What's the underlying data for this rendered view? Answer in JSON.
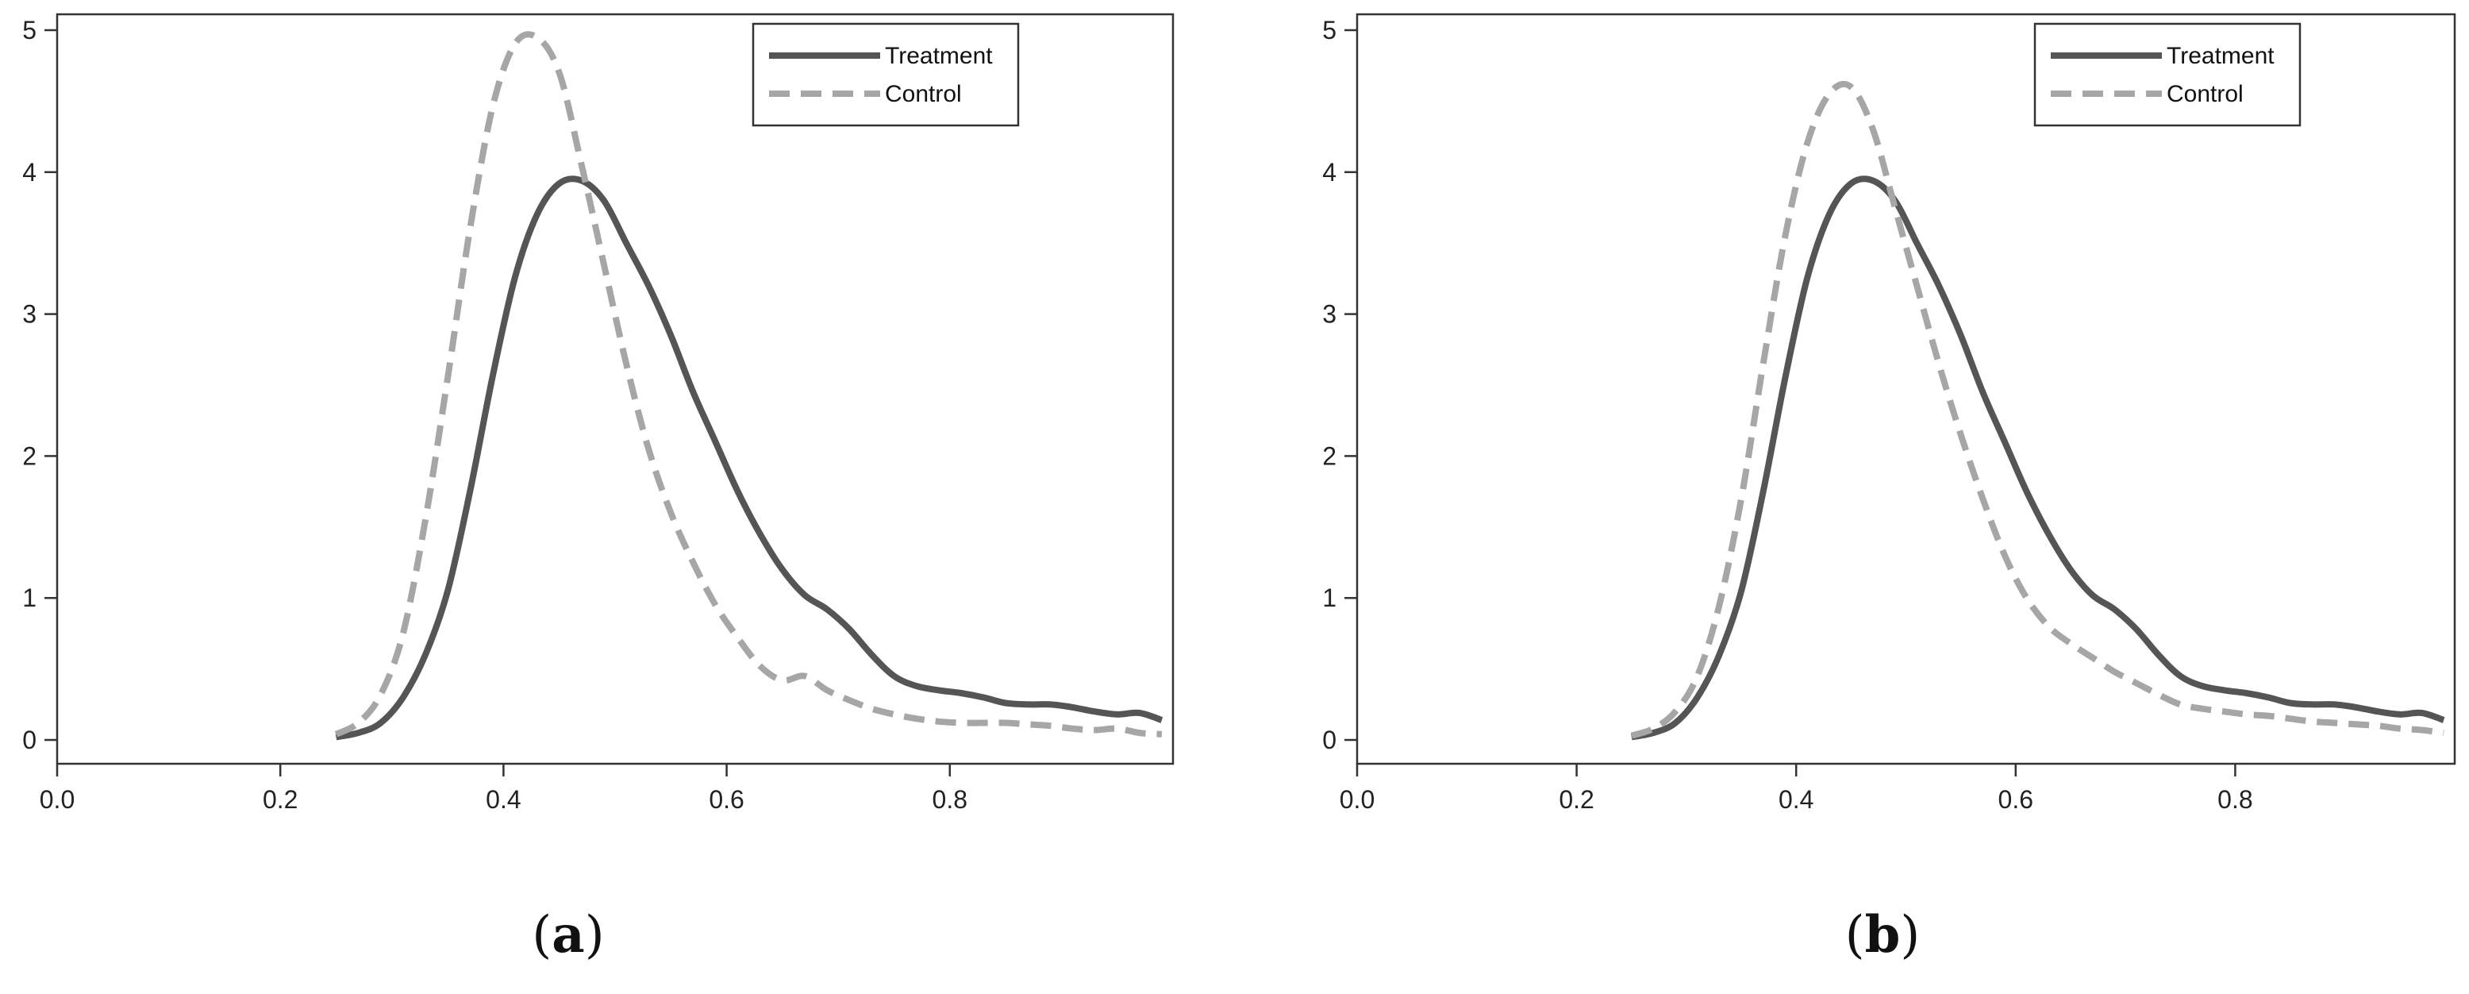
{
  "chart_data": [
    {
      "type": "line",
      "panel_label": "a",
      "xlim": [
        0.0,
        1.0
      ],
      "ylim": [
        0,
        5
      ],
      "xticks": [
        "0.0",
        "0.2",
        "0.4",
        "0.6",
        "0.8"
      ],
      "yticks": [
        "0",
        "1",
        "2",
        "3",
        "4",
        "5"
      ],
      "legend_position": "top-right",
      "series": [
        {
          "name": "Treatment",
          "style": "solid",
          "color": "#555555",
          "x": [
            0.25,
            0.27,
            0.29,
            0.31,
            0.33,
            0.35,
            0.37,
            0.39,
            0.41,
            0.43,
            0.45,
            0.47,
            0.49,
            0.51,
            0.53,
            0.55,
            0.57,
            0.59,
            0.61,
            0.63,
            0.65,
            0.67,
            0.69,
            0.71,
            0.73,
            0.75,
            0.77,
            0.79,
            0.81,
            0.83,
            0.85,
            0.87,
            0.89,
            0.91,
            0.93,
            0.95,
            0.97,
            0.99
          ],
          "y": [
            0.02,
            0.05,
            0.12,
            0.3,
            0.6,
            1.05,
            1.75,
            2.55,
            3.25,
            3.7,
            3.92,
            3.94,
            3.8,
            3.5,
            3.2,
            2.85,
            2.45,
            2.1,
            1.75,
            1.45,
            1.2,
            1.02,
            0.92,
            0.78,
            0.6,
            0.45,
            0.38,
            0.35,
            0.33,
            0.3,
            0.26,
            0.25,
            0.25,
            0.23,
            0.2,
            0.18,
            0.19,
            0.14
          ]
        },
        {
          "name": "Control",
          "style": "dashed",
          "color": "#a6a6a6",
          "x": [
            0.25,
            0.27,
            0.29,
            0.31,
            0.33,
            0.35,
            0.37,
            0.39,
            0.41,
            0.43,
            0.45,
            0.47,
            0.49,
            0.51,
            0.53,
            0.55,
            0.57,
            0.59,
            0.61,
            0.63,
            0.65,
            0.67,
            0.69,
            0.71,
            0.73,
            0.75,
            0.77,
            0.79,
            0.81,
            0.83,
            0.85,
            0.87,
            0.89,
            0.91,
            0.93,
            0.95,
            0.97,
            0.99
          ],
          "y": [
            0.04,
            0.12,
            0.32,
            0.75,
            1.55,
            2.55,
            3.6,
            4.45,
            4.9,
            4.95,
            4.7,
            4.05,
            3.35,
            2.65,
            2.05,
            1.6,
            1.25,
            0.95,
            0.72,
            0.52,
            0.42,
            0.45,
            0.35,
            0.28,
            0.22,
            0.18,
            0.15,
            0.13,
            0.12,
            0.12,
            0.12,
            0.11,
            0.1,
            0.08,
            0.07,
            0.08,
            0.05,
            0.04
          ]
        }
      ]
    },
    {
      "type": "line",
      "panel_label": "b",
      "xlim": [
        0.0,
        1.0
      ],
      "ylim": [
        0,
        5
      ],
      "xticks": [
        "0.0",
        "0.2",
        "0.4",
        "0.6",
        "0.8"
      ],
      "yticks": [
        "0",
        "1",
        "2",
        "3",
        "4",
        "5"
      ],
      "legend_position": "top-right",
      "series": [
        {
          "name": "Treatment",
          "style": "solid",
          "color": "#555555",
          "x": [
            0.25,
            0.27,
            0.29,
            0.31,
            0.33,
            0.35,
            0.37,
            0.39,
            0.41,
            0.43,
            0.45,
            0.47,
            0.49,
            0.51,
            0.53,
            0.55,
            0.57,
            0.59,
            0.61,
            0.63,
            0.65,
            0.67,
            0.69,
            0.71,
            0.73,
            0.75,
            0.77,
            0.79,
            0.81,
            0.83,
            0.85,
            0.87,
            0.89,
            0.91,
            0.93,
            0.95,
            0.97,
            0.99
          ],
          "y": [
            0.02,
            0.05,
            0.12,
            0.3,
            0.6,
            1.05,
            1.75,
            2.55,
            3.25,
            3.7,
            3.92,
            3.94,
            3.8,
            3.5,
            3.2,
            2.85,
            2.45,
            2.1,
            1.75,
            1.45,
            1.2,
            1.02,
            0.92,
            0.78,
            0.6,
            0.45,
            0.38,
            0.35,
            0.33,
            0.3,
            0.26,
            0.25,
            0.25,
            0.23,
            0.2,
            0.18,
            0.19,
            0.14
          ]
        },
        {
          "name": "Control",
          "style": "dashed",
          "color": "#a6a6a6",
          "x": [
            0.25,
            0.27,
            0.29,
            0.31,
            0.33,
            0.35,
            0.37,
            0.39,
            0.41,
            0.43,
            0.45,
            0.47,
            0.49,
            0.51,
            0.53,
            0.55,
            0.57,
            0.59,
            0.61,
            0.63,
            0.65,
            0.67,
            0.69,
            0.71,
            0.73,
            0.75,
            0.77,
            0.79,
            0.81,
            0.83,
            0.85,
            0.87,
            0.89,
            0.91,
            0.93,
            0.95,
            0.97,
            0.99
          ],
          "y": [
            0.03,
            0.08,
            0.2,
            0.45,
            0.95,
            1.7,
            2.65,
            3.55,
            4.2,
            4.55,
            4.6,
            4.3,
            3.75,
            3.2,
            2.65,
            2.15,
            1.7,
            1.3,
            1.0,
            0.8,
            0.68,
            0.58,
            0.48,
            0.4,
            0.32,
            0.25,
            0.22,
            0.2,
            0.18,
            0.17,
            0.15,
            0.13,
            0.12,
            0.11,
            0.1,
            0.08,
            0.07,
            0.05
          ]
        }
      ]
    }
  ]
}
